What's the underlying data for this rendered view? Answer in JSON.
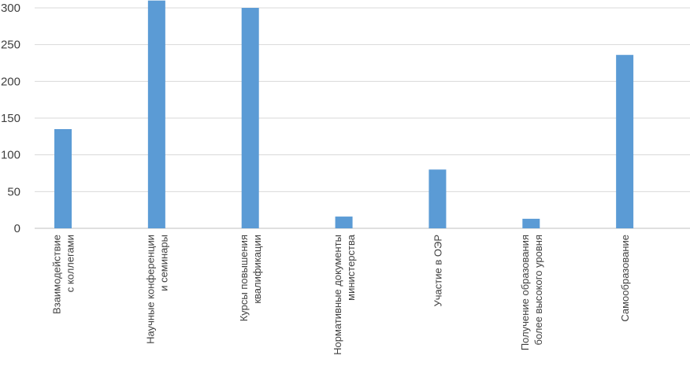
{
  "chart_data": {
    "type": "bar",
    "categories": [
      [
        "Взаимодействие",
        "с коллегами"
      ],
      [
        "Научные конференции",
        "и семинары"
      ],
      [
        "Курсы повышения",
        "квалификации"
      ],
      [
        "Нормативные документы",
        "министерства"
      ],
      [
        "Участие в ОЭР"
      ],
      [
        "Получение образования",
        "более высокого уровня"
      ],
      [
        "Самообразование"
      ]
    ],
    "series": [
      {
        "values": [
          135,
          310,
          300,
          16,
          80,
          13,
          236
        ]
      }
    ],
    "yticks": [
      "0",
      "50",
      "100",
      "150",
      "200",
      "250",
      "300"
    ],
    "ylim": [
      0,
      300
    ],
    "grid": true,
    "title": "",
    "xlabel": "",
    "ylabel": "",
    "colors": {
      "bar": "#5b9bd5",
      "grid": "#d9d9d9",
      "text": "#404040"
    }
  }
}
